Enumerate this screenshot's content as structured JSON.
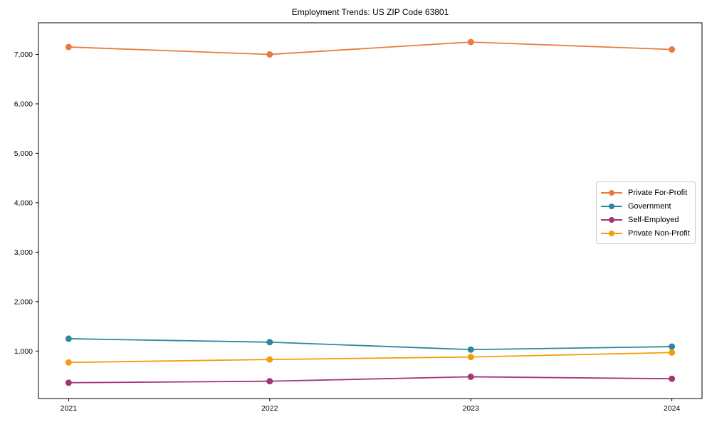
{
  "title": "Employment Trends: US ZIP Code 63801",
  "chart_data": {
    "type": "line",
    "x": [
      2021,
      2022,
      2023,
      2024
    ],
    "x_tick_labels": [
      "2021",
      "2022",
      "2023",
      "2024"
    ],
    "y_ticks": [
      1000,
      2000,
      3000,
      4000,
      5000,
      6000,
      7000
    ],
    "y_tick_labels": [
      "1,000",
      "2,000",
      "3,000",
      "4,000",
      "5,000",
      "6,000",
      "7,000"
    ],
    "xlim": [
      2020.85,
      2024.15
    ],
    "ylim": [
      40,
      7640
    ],
    "grid": false,
    "legend_position": "center-right",
    "series": [
      {
        "name": "Private For-Profit",
        "color": "#E87C3E",
        "values": [
          7150,
          7000,
          7250,
          7100
        ]
      },
      {
        "name": "Government",
        "color": "#2E86A0",
        "values": [
          1250,
          1180,
          1030,
          1090
        ]
      },
      {
        "name": "Self-Employed",
        "color": "#A23679",
        "values": [
          360,
          390,
          480,
          440
        ]
      },
      {
        "name": "Private Non-Profit",
        "color": "#F49C0C",
        "values": [
          770,
          830,
          880,
          970
        ]
      }
    ]
  },
  "axis_style": {
    "text_color": "#000000",
    "spine_color": "#000000"
  }
}
